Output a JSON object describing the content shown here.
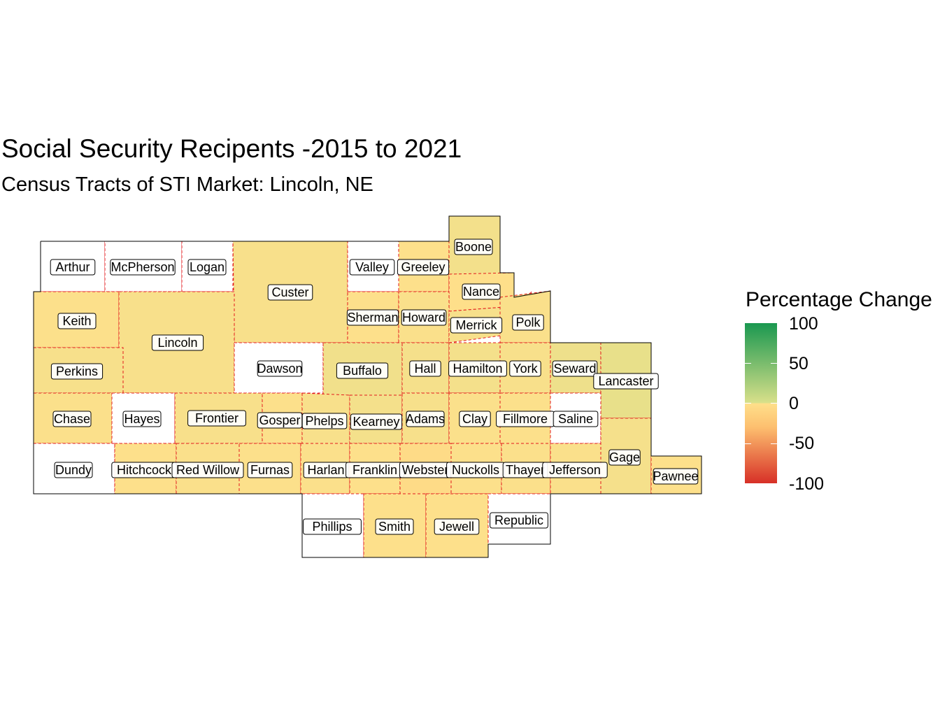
{
  "title": "Social Security Recipents -2015 to 2021",
  "subtitle": "Census Tracts of STI Market: Lincoln, NE",
  "legend": {
    "title": "Percentage Change",
    "ticks": [
      "100",
      "50",
      "0",
      "-50",
      "-100"
    ],
    "colors": {
      "high": "#1a9850",
      "mid_pos": "#d9e08a",
      "zero": "#fee08b",
      "mid_neg": "#fdbf6f",
      "low": "#d73027"
    }
  },
  "colors": {
    "no_data": "#ffffff",
    "border": "#000000",
    "county_line": "#e31a1c"
  },
  "chart_data": {
    "type": "choropleth",
    "variable": "Percentage Change",
    "range": [
      -100,
      100
    ],
    "counties": [
      {
        "name": "Arthur",
        "value": null
      },
      {
        "name": "McPherson",
        "value": null
      },
      {
        "name": "Logan",
        "value": null
      },
      {
        "name": "Custer",
        "value": 8
      },
      {
        "name": "Valley",
        "value": null
      },
      {
        "name": "Greeley",
        "value": 2
      },
      {
        "name": "Boone",
        "value": 15
      },
      {
        "name": "Nance",
        "value": -2
      },
      {
        "name": "Keith",
        "value": 3
      },
      {
        "name": "Lincoln",
        "value": 8
      },
      {
        "name": "Sherman",
        "value": 2
      },
      {
        "name": "Howard",
        "value": 5
      },
      {
        "name": "Merrick",
        "value": 10
      },
      {
        "name": "Polk",
        "value": 6
      },
      {
        "name": "Perkins",
        "value": 10
      },
      {
        "name": "Dawson",
        "value": null
      },
      {
        "name": "Buffalo",
        "value": 18
      },
      {
        "name": "Hall",
        "value": 12
      },
      {
        "name": "Hamilton",
        "value": 14
      },
      {
        "name": "York",
        "value": 8
      },
      {
        "name": "Seward",
        "value": 22
      },
      {
        "name": "Lancaster",
        "value": 30
      },
      {
        "name": "Chase",
        "value": 4
      },
      {
        "name": "Hayes",
        "value": null
      },
      {
        "name": "Frontier",
        "value": 8
      },
      {
        "name": "Gosper",
        "value": 3
      },
      {
        "name": "Phelps",
        "value": 8
      },
      {
        "name": "Kearney",
        "value": 14
      },
      {
        "name": "Adams",
        "value": 10
      },
      {
        "name": "Clay",
        "value": 4
      },
      {
        "name": "Fillmore",
        "value": 3
      },
      {
        "name": "Saline",
        "value": null
      },
      {
        "name": "Dundy",
        "value": null
      },
      {
        "name": "Hitchcock",
        "value": 2
      },
      {
        "name": "Red Willow",
        "value": 6
      },
      {
        "name": "Furnas",
        "value": 3
      },
      {
        "name": "Harlan",
        "value": 4
      },
      {
        "name": "Franklin",
        "value": 2
      },
      {
        "name": "Webster",
        "value": -8
      },
      {
        "name": "Nuckolls",
        "value": 3
      },
      {
        "name": "Thayer",
        "value": 4
      },
      {
        "name": "Jefferson",
        "value": 5
      },
      {
        "name": "Gage",
        "value": 12
      },
      {
        "name": "Pawnee",
        "value": 2
      },
      {
        "name": "Phillips",
        "value": null
      },
      {
        "name": "Smith",
        "value": 2
      },
      {
        "name": "Jewell",
        "value": 2
      },
      {
        "name": "Republic",
        "value": null
      }
    ]
  }
}
